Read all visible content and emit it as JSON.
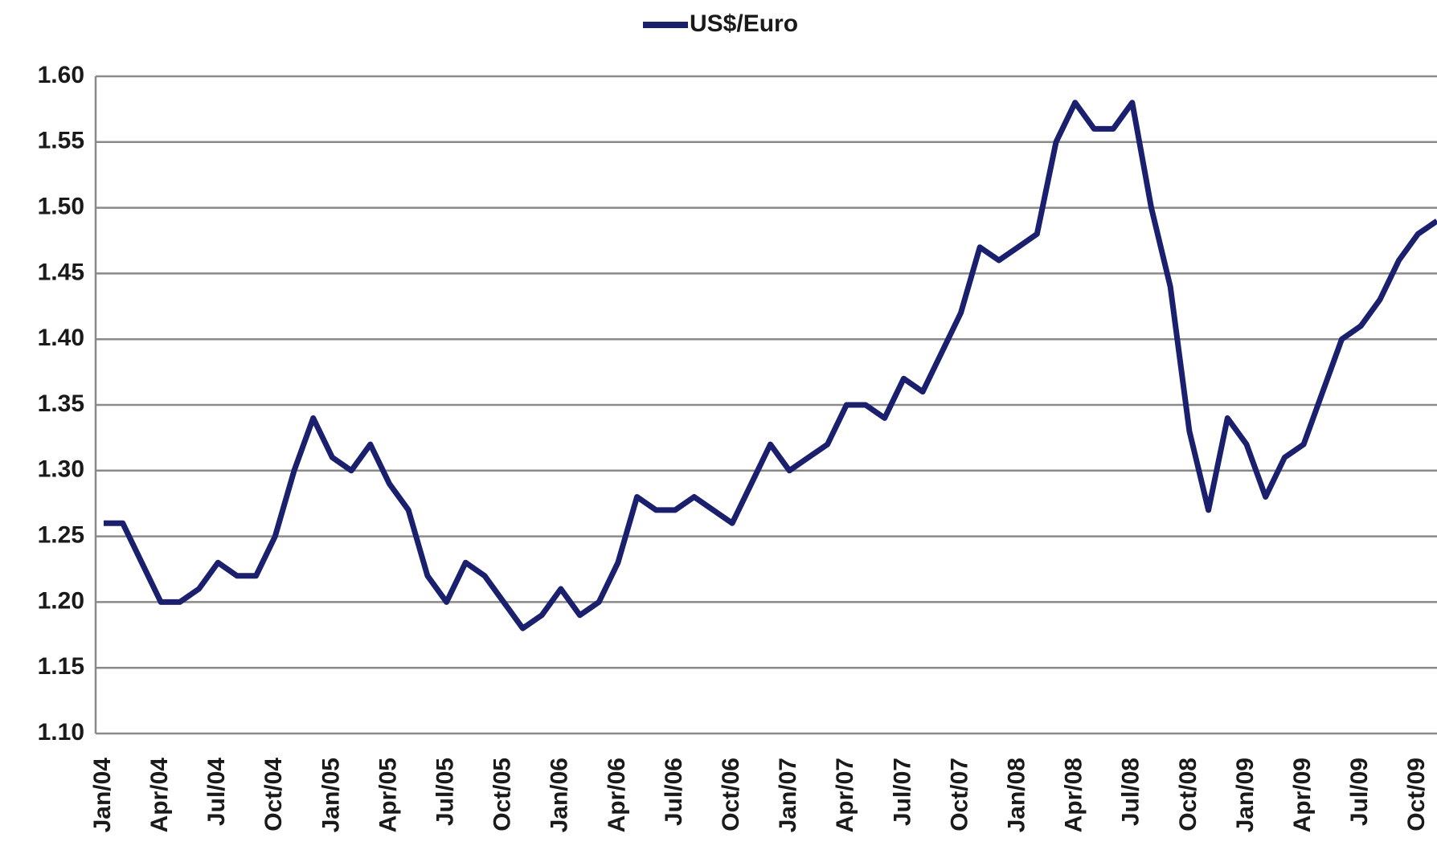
{
  "chart_data": {
    "type": "line",
    "categories": [
      "Jan/04",
      null,
      null,
      "Apr/04",
      null,
      null,
      "Jul/04",
      null,
      null,
      "Oct/04",
      null,
      null,
      "Jan/05",
      null,
      null,
      "Apr/05",
      null,
      null,
      "Jul/05",
      null,
      null,
      "Oct/05",
      null,
      null,
      "Jan/06",
      null,
      null,
      "Apr/06",
      null,
      null,
      "Jul/06",
      null,
      null,
      "Oct/06",
      null,
      null,
      "Jan/07",
      null,
      null,
      "Apr/07",
      null,
      null,
      "Jul/07",
      null,
      null,
      "Oct/07",
      null,
      null,
      "Jan/08",
      null,
      null,
      "Apr/08",
      null,
      null,
      "Jul/08",
      null,
      null,
      "Oct/08",
      null,
      null,
      "Jan/09",
      null,
      null,
      "Apr/09",
      null,
      null,
      "Jul/09",
      null,
      null,
      "Oct/09",
      null
    ],
    "series": [
      {
        "name": "US$/Euro",
        "color": "#1a1f6e",
        "values": [
          1.26,
          1.26,
          1.23,
          1.2,
          1.2,
          1.21,
          1.23,
          1.22,
          1.22,
          1.25,
          1.3,
          1.34,
          1.31,
          1.3,
          1.32,
          1.29,
          1.27,
          1.22,
          1.2,
          1.23,
          1.22,
          1.2,
          1.18,
          1.19,
          1.21,
          1.19,
          1.2,
          1.23,
          1.28,
          1.27,
          1.27,
          1.28,
          1.27,
          1.26,
          1.29,
          1.32,
          1.3,
          1.31,
          1.32,
          1.35,
          1.35,
          1.34,
          1.37,
          1.36,
          1.39,
          1.42,
          1.47,
          1.46,
          1.47,
          1.48,
          1.55,
          1.58,
          1.56,
          1.56,
          1.58,
          1.5,
          1.44,
          1.33,
          1.27,
          1.34,
          1.32,
          1.28,
          1.31,
          1.32,
          1.36,
          1.4,
          1.41,
          1.43,
          1.46,
          1.48,
          1.49
        ]
      }
    ],
    "ylim": [
      1.1,
      1.6
    ],
    "yticks": [
      {
        "value": 1.1,
        "label": "1.10"
      },
      1.15,
      {
        "value": 1.2,
        "label": "1.20"
      },
      1.25,
      {
        "value": 1.3,
        "label": "1.30"
      },
      1.35,
      {
        "value": 1.4,
        "label": "1.40"
      },
      1.45,
      {
        "value": 1.5,
        "label": "1.50"
      },
      1.55,
      {
        "value": 1.6,
        "label": "1.60"
      }
    ],
    "grid": true,
    "legend": "top"
  }
}
